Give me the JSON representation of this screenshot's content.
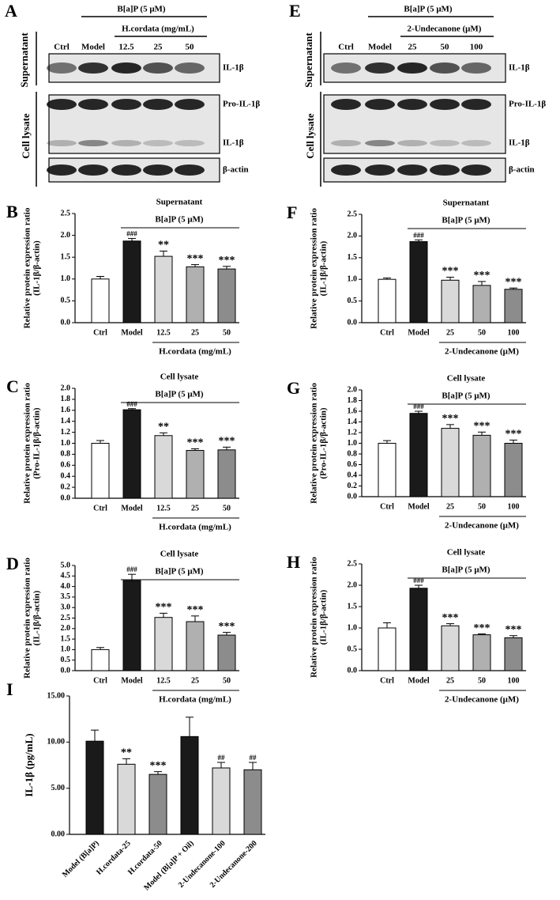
{
  "blots": [
    {
      "panel": "A",
      "treatment": "B[a]P (5 μM)",
      "agent": "H.cordata (mg/mL)",
      "lanes": [
        "Ctrl",
        "Model",
        "12.5",
        "25",
        "50"
      ],
      "sections": [
        "Supernatant",
        "Cell lysate"
      ],
      "bands": [
        "IL-1β",
        "Pro-IL-1β",
        "IL-1β",
        "β-actin"
      ]
    },
    {
      "panel": "E",
      "treatment": "B[a]P (5 μM)",
      "agent": "2-Undecanone (μM)",
      "lanes": [
        "Ctrl",
        "Model",
        "25",
        "50",
        "100"
      ],
      "sections": [
        "Supernatant",
        "Cell lysate"
      ],
      "bands": [
        "IL-1β",
        "Pro-IL-1β",
        "IL-1β",
        "β-actin"
      ]
    }
  ],
  "chart_data": [
    {
      "type": "bar",
      "panel": "B",
      "title": "Supernatant",
      "ylabel": [
        "Relative protein expression ratio",
        "(IL-1β/β-actin)"
      ],
      "treatment": "B[a]P (5 μM)",
      "agent": "H.cordata (mg/mL)",
      "categories": [
        "Ctrl",
        "Model",
        "12.5",
        "25",
        "50"
      ],
      "values": [
        1.0,
        1.87,
        1.52,
        1.28,
        1.23
      ],
      "errors": [
        0.06,
        0.06,
        0.12,
        0.05,
        0.06
      ],
      "annotations": [
        null,
        "###",
        "**",
        "***",
        "***"
      ],
      "colors": [
        "#ffffff",
        "#1a1a1a",
        "#d9d9d9",
        "#b0b0b0",
        "#8c8c8c"
      ],
      "ylim": [
        0,
        2.5
      ],
      "yticks": [
        {
          "value": 0,
          "label": "0.0"
        },
        {
          "value": 0.5,
          "label": "0.5"
        },
        {
          "value": 1,
          "label": "1.0"
        },
        {
          "value": 1.5,
          "label": "1.5"
        },
        {
          "value": 2,
          "label": "2.0"
        },
        {
          "value": 2.5,
          "label": "2.5"
        }
      ]
    },
    {
      "type": "bar",
      "panel": "C",
      "title": "Cell lysate",
      "ylabel": [
        "Relative protein expression ratio",
        "(Pro-IL-1β/β-actin)"
      ],
      "treatment": "B[a]P (5 μM)",
      "agent": "H.cordata  (mg/mL)",
      "categories": [
        "Ctrl",
        "Model",
        "12.5",
        "25",
        "50"
      ],
      "values": [
        1.0,
        1.61,
        1.14,
        0.87,
        0.88
      ],
      "errors": [
        0.05,
        0.02,
        0.05,
        0.03,
        0.05
      ],
      "annotations": [
        null,
        "###",
        "**",
        "***",
        "***"
      ],
      "colors": [
        "#ffffff",
        "#1a1a1a",
        "#d9d9d9",
        "#b0b0b0",
        "#8c8c8c"
      ],
      "ylim": [
        0,
        2.0
      ],
      "yticks": [
        {
          "value": 0,
          "label": "0.0"
        },
        {
          "value": 0.2,
          "label": "0.2"
        },
        {
          "value": 0.4,
          "label": "0.4"
        },
        {
          "value": 0.6,
          "label": "0.6"
        },
        {
          "value": 0.8,
          "label": "0.8"
        },
        {
          "value": 1,
          "label": "1.0"
        },
        {
          "value": 1.2,
          "label": "1.2"
        },
        {
          "value": 1.4,
          "label": "1.4"
        },
        {
          "value": 1.6,
          "label": "1.6"
        },
        {
          "value": 1.8,
          "label": "1.8"
        },
        {
          "value": 2,
          "label": "2.0"
        }
      ]
    },
    {
      "type": "bar",
      "panel": "D",
      "title": "Cell lysate",
      "ylabel": [
        "Relative protein expression ratio",
        "(IL-1β/β-actin)"
      ],
      "treatment": "B[a]P (5 μM)",
      "agent": "H.cordata  (mg/mL)",
      "categories": [
        "Ctrl",
        "Model",
        "12.5",
        "25",
        "50"
      ],
      "values": [
        1.0,
        4.28,
        2.53,
        2.33,
        1.69
      ],
      "errors": [
        0.1,
        0.3,
        0.2,
        0.27,
        0.13
      ],
      "annotations": [
        null,
        "###",
        "***",
        "***",
        "***"
      ],
      "colors": [
        "#ffffff",
        "#1a1a1a",
        "#d9d9d9",
        "#b0b0b0",
        "#8c8c8c"
      ],
      "ylim": [
        0,
        5.0
      ],
      "yticks": [
        {
          "value": 0,
          "label": "0.0"
        },
        {
          "value": 0.5,
          "label": "0.5"
        },
        {
          "value": 1,
          "label": "1.0"
        },
        {
          "value": 1.5,
          "label": "1.5"
        },
        {
          "value": 2,
          "label": "2.0"
        },
        {
          "value": 2.5,
          "label": "2.5"
        },
        {
          "value": 3,
          "label": "3.0"
        },
        {
          "value": 3.5,
          "label": "3.5"
        },
        {
          "value": 4,
          "label": "4.0"
        },
        {
          "value": 4.5,
          "label": "4.5"
        },
        {
          "value": 5,
          "label": "5.0"
        }
      ]
    },
    {
      "type": "bar",
      "panel": "F",
      "title": "Supernatant",
      "ylabel": [
        "Relative protein expression ratio",
        "(IL-1β/β-actin)"
      ],
      "treatment": "B[a]P (5 μM)",
      "agent": "2-Undecanone (μM)",
      "categories": [
        "Ctrl",
        "Model",
        "25",
        "50",
        "100"
      ],
      "values": [
        1.0,
        1.87,
        0.98,
        0.86,
        0.77
      ],
      "errors": [
        0.03,
        0.04,
        0.07,
        0.09,
        0.03
      ],
      "annotations": [
        null,
        "###",
        "***",
        "***",
        "***"
      ],
      "colors": [
        "#ffffff",
        "#1a1a1a",
        "#d9d9d9",
        "#b0b0b0",
        "#8c8c8c"
      ],
      "ylim": [
        0,
        2.5
      ],
      "yticks": [
        {
          "value": 0,
          "label": "0.0"
        },
        {
          "value": 0.5,
          "label": "0.5"
        },
        {
          "value": 1,
          "label": "1.0"
        },
        {
          "value": 1.5,
          "label": "1.5"
        },
        {
          "value": 2,
          "label": "2.0"
        },
        {
          "value": 2.5,
          "label": "2.5"
        }
      ]
    },
    {
      "type": "bar",
      "panel": "G",
      "title": "Cell lysate",
      "ylabel": [
        "Relative protein expression ratio",
        "(Pro-IL-1β/β-actin)"
      ],
      "treatment": "B[a]P (5 μM)",
      "agent": "2-Undecanone (μM)",
      "categories": [
        "Ctrl",
        "Model",
        "25",
        "50",
        "100"
      ],
      "values": [
        1.0,
        1.56,
        1.28,
        1.15,
        1.0
      ],
      "errors": [
        0.05,
        0.04,
        0.07,
        0.06,
        0.06
      ],
      "annotations": [
        null,
        "###",
        "***",
        "***",
        "***"
      ],
      "colors": [
        "#ffffff",
        "#1a1a1a",
        "#d9d9d9",
        "#b0b0b0",
        "#8c8c8c"
      ],
      "ylim": [
        0,
        2.0
      ],
      "yticks": [
        {
          "value": 0,
          "label": "0.0"
        },
        {
          "value": 0.2,
          "label": "0.2"
        },
        {
          "value": 0.4,
          "label": "0.4"
        },
        {
          "value": 0.6,
          "label": "0.6"
        },
        {
          "value": 0.8,
          "label": "0.8"
        },
        {
          "value": 1,
          "label": "1.0"
        },
        {
          "value": 1.2,
          "label": "1.2"
        },
        {
          "value": 1.4,
          "label": "1.4"
        },
        {
          "value": 1.6,
          "label": "1.6"
        },
        {
          "value": 1.8,
          "label": "1.8"
        },
        {
          "value": 2,
          "label": "2.0"
        }
      ]
    },
    {
      "type": "bar",
      "panel": "H",
      "title": "Cell lysate",
      "ylabel": [
        "Relative protein expression ratio",
        "(IL-1β/β-actin)"
      ],
      "treatment": "B[a]P (5 μM)",
      "agent": "2-Undecanone (μM)",
      "categories": [
        "Ctrl",
        "Model",
        "25",
        "50",
        "100"
      ],
      "values": [
        1.0,
        1.93,
        1.05,
        0.84,
        0.77
      ],
      "errors": [
        0.12,
        0.07,
        0.05,
        0.02,
        0.05
      ],
      "annotations": [
        null,
        "###",
        "***",
        "***",
        "***"
      ],
      "colors": [
        "#ffffff",
        "#1a1a1a",
        "#d9d9d9",
        "#b0b0b0",
        "#8c8c8c"
      ],
      "ylim": [
        0,
        2.5
      ],
      "yticks": [
        {
          "value": 0,
          "label": "0.0"
        },
        {
          "value": 0.5,
          "label": "0.5"
        },
        {
          "value": 1,
          "label": "1.0"
        },
        {
          "value": 1.5,
          "label": "1.5"
        },
        {
          "value": 2,
          "label": "2.0"
        },
        {
          "value": 2.5,
          "label": "2.5"
        }
      ]
    },
    {
      "type": "bar",
      "panel": "I",
      "ylabel": [
        "IL-1β (pg/mL)"
      ],
      "categories": [
        "Model (B[a]P)",
        "H.cordata-25",
        "H.cordata-50",
        "Model (B[a]P + Oil)",
        "2-Undecanone-100",
        "2-Undecanone-200"
      ],
      "values": [
        10.1,
        7.6,
        6.5,
        10.6,
        7.2,
        7.0
      ],
      "errors": [
        1.2,
        0.6,
        0.3,
        2.1,
        0.6,
        0.8
      ],
      "annotations": [
        null,
        "**",
        "***",
        null,
        "##",
        "##"
      ],
      "colors": [
        "#1a1a1a",
        "#d9d9d9",
        "#8c8c8c",
        "#1a1a1a",
        "#d9d9d9",
        "#8c8c8c"
      ],
      "ylim": [
        0,
        15
      ],
      "yticks": [
        {
          "value": 0,
          "label": "0.00"
        },
        {
          "value": 5,
          "label": "5.00"
        },
        {
          "value": 10,
          "label": "10.00"
        },
        {
          "value": 15,
          "label": "15.00"
        }
      ]
    }
  ]
}
